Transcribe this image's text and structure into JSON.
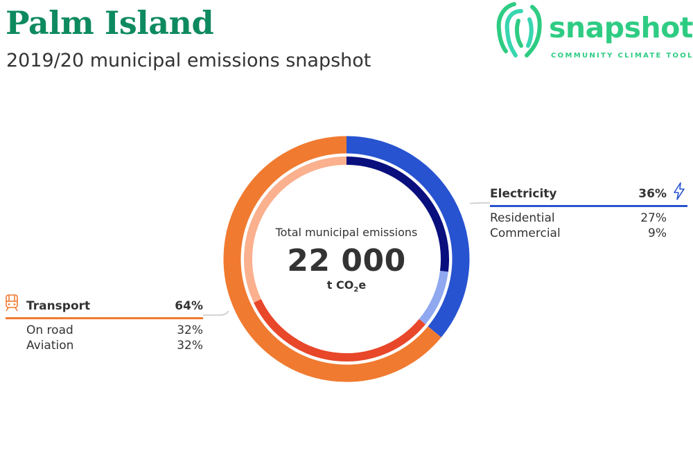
{
  "header": {
    "title": "Palm Island",
    "subtitle": "2019/20 municipal emissions snapshot"
  },
  "logo": {
    "word": "snapshot",
    "tagline": "COMMUNITY CLIMATE TOOL",
    "color": "#2ecc83"
  },
  "center": {
    "label": "Total municipal emissions",
    "value": "22 000",
    "unit_prefix": "t CO",
    "unit_sub": "2",
    "unit_suffix": "e"
  },
  "chart_data": {
    "type": "pie",
    "total": 22000,
    "unit": "t CO2e",
    "sectors": [
      {
        "name": "Electricity",
        "percent_label": "36%",
        "value": 36,
        "color": "#2753d0",
        "icon": "lightning-bolt-icon",
        "subsectors": [
          {
            "name": "Residential",
            "percent_label": "27%",
            "value": 27,
            "color": "#0a0f7e"
          },
          {
            "name": "Commercial",
            "percent_label": "9%",
            "value": 9,
            "color": "#8fa8f0"
          }
        ]
      },
      {
        "name": "Transport",
        "percent_label": "64%",
        "value": 64,
        "color": "#f07a30",
        "icon": "train-icon",
        "subsectors": [
          {
            "name": "On road",
            "percent_label": "32%",
            "value": 32,
            "color": "#e8472a"
          },
          {
            "name": "Aviation",
            "percent_label": "32%",
            "value": 32,
            "color": "#fbb08e"
          }
        ]
      }
    ]
  }
}
